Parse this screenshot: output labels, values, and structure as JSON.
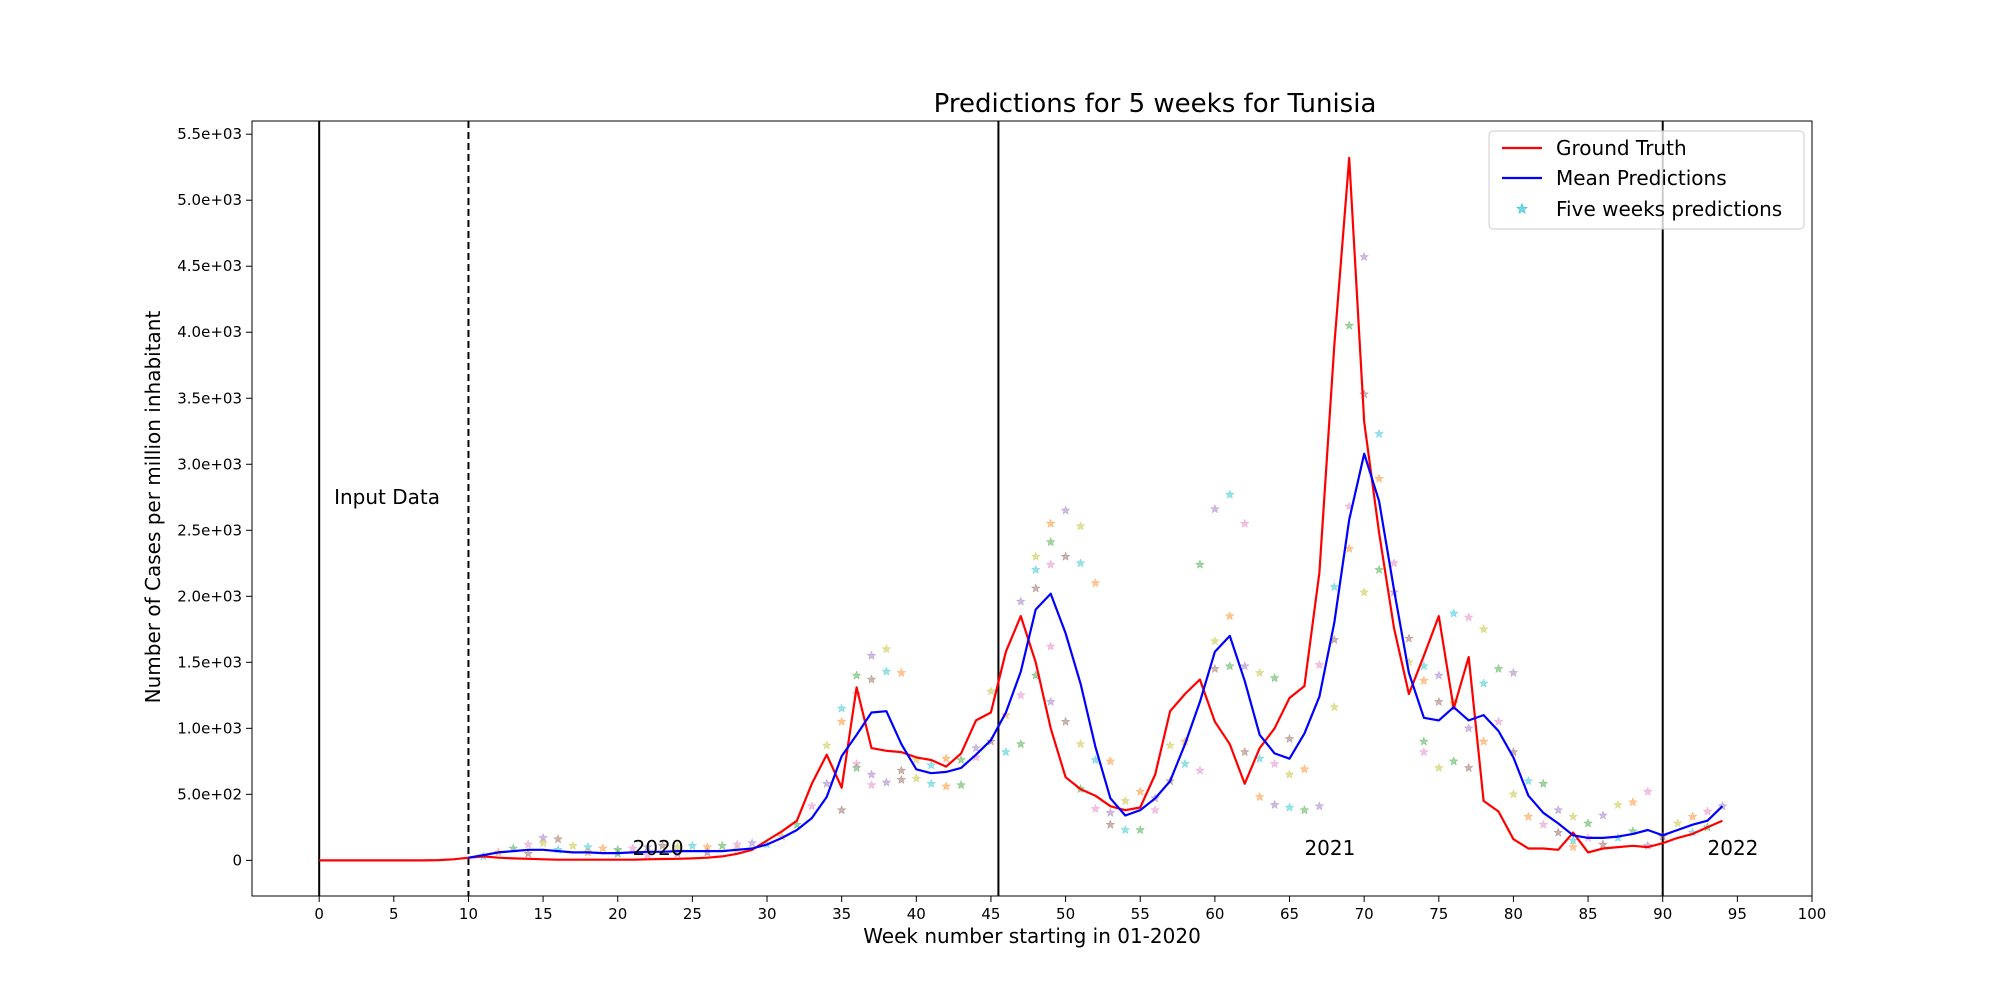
{
  "chart_data": {
    "type": "line",
    "title": "Predictions for 5 weeks for Tunisia",
    "xlabel": "Week number starting in 01-2020",
    "ylabel": "Number of Cases per million inhabitant",
    "xlim": [
      -4.5,
      100
    ],
    "ylim": [
      -270,
      5600
    ],
    "xticks": [
      0,
      5,
      10,
      15,
      20,
      25,
      30,
      35,
      40,
      45,
      50,
      55,
      60,
      65,
      70,
      75,
      80,
      85,
      90,
      95,
      100
    ],
    "yticks": [
      {
        "value": 0,
        "label": "0"
      },
      {
        "value": 500,
        "label": "5.0e+02"
      },
      {
        "value": 1000,
        "label": "1.0e+03"
      },
      {
        "value": 1500,
        "label": "1.5e+03"
      },
      {
        "value": 2000,
        "label": "2.0e+03"
      },
      {
        "value": 2500,
        "label": "2.5e+03"
      },
      {
        "value": 3000,
        "label": "3.0e+03"
      },
      {
        "value": 3500,
        "label": "3.5e+03"
      },
      {
        "value": 4000,
        "label": "4.0e+03"
      },
      {
        "value": 4500,
        "label": "4.5e+03"
      },
      {
        "value": 5000,
        "label": "5.0e+03"
      },
      {
        "value": 5500,
        "label": "5.5e+03"
      }
    ],
    "grid": false,
    "legend_position": "top-right",
    "vertical_lines": [
      {
        "x": 0,
        "style": "solid"
      },
      {
        "x": 10,
        "style": "dashed"
      },
      {
        "x": 45.5,
        "style": "solid"
      },
      {
        "x": 90,
        "style": "solid"
      }
    ],
    "annotations": [
      {
        "text": "Input Data",
        "x": 1,
        "y": 2700
      },
      {
        "text": "2020",
        "x": 21,
        "y": 40
      },
      {
        "text": "2021",
        "x": 66,
        "y": 40
      },
      {
        "text": "2022",
        "x": 93,
        "y": 40
      }
    ],
    "series": [
      {
        "name": "Ground Truth",
        "color": "#ff0000",
        "kind": "line",
        "x": [
          0,
          1,
          2,
          3,
          4,
          5,
          6,
          7,
          8,
          9,
          10,
          11,
          12,
          13,
          14,
          15,
          16,
          17,
          18,
          19,
          20,
          21,
          22,
          23,
          24,
          25,
          26,
          27,
          28,
          29,
          30,
          31,
          32,
          33,
          34,
          35,
          36,
          37,
          38,
          39,
          40,
          41,
          42,
          43,
          44,
          45,
          46,
          47,
          48,
          49,
          50,
          51,
          52,
          53,
          54,
          55,
          56,
          57,
          58,
          59,
          60,
          61,
          62,
          63,
          64,
          65,
          66,
          67,
          68,
          69,
          70,
          71,
          72,
          73,
          74,
          75,
          76,
          77,
          78,
          79,
          80,
          81,
          82,
          83,
          84,
          85,
          86,
          87,
          88,
          89,
          90,
          91,
          92,
          93,
          94
        ],
        "values": [
          0,
          0,
          0,
          0,
          0,
          0,
          0,
          0,
          2,
          8,
          20,
          30,
          20,
          15,
          12,
          8,
          5,
          5,
          5,
          5,
          5,
          5,
          8,
          10,
          12,
          15,
          20,
          30,
          50,
          80,
          150,
          220,
          300,
          580,
          800,
          550,
          1310,
          850,
          830,
          820,
          780,
          760,
          710,
          810,
          1060,
          1120,
          1580,
          1850,
          1500,
          1000,
          630,
          540,
          490,
          410,
          380,
          400,
          650,
          1130,
          1260,
          1370,
          1050,
          880,
          580,
          850,
          1000,
          1230,
          1320,
          2180,
          3900,
          5320,
          3320,
          2480,
          1760,
          1260,
          1550,
          1850,
          1150,
          1540,
          450,
          370,
          160,
          90,
          90,
          80,
          210,
          60,
          90,
          100,
          110,
          100,
          130,
          170,
          200,
          250,
          300
        ]
      },
      {
        "name": "Mean Predictions",
        "color": "#0000ff",
        "kind": "line",
        "x": [
          10,
          11,
          12,
          13,
          14,
          15,
          16,
          17,
          18,
          19,
          20,
          21,
          22,
          23,
          24,
          25,
          26,
          27,
          28,
          29,
          30,
          31,
          32,
          33,
          34,
          35,
          36,
          37,
          38,
          39,
          40,
          41,
          42,
          43,
          44,
          45,
          46,
          47,
          48,
          49,
          50,
          51,
          52,
          53,
          54,
          55,
          56,
          57,
          58,
          59,
          60,
          61,
          62,
          63,
          64,
          65,
          66,
          67,
          68,
          69,
          70,
          71,
          72,
          73,
          74,
          75,
          76,
          77,
          78,
          79,
          80,
          81,
          82,
          83,
          84,
          85,
          86,
          87,
          88,
          89,
          90,
          91,
          92,
          93,
          94
        ],
        "values": [
          20,
          40,
          60,
          70,
          80,
          80,
          70,
          60,
          60,
          55,
          55,
          60,
          65,
          65,
          70,
          70,
          70,
          70,
          80,
          90,
          120,
          170,
          230,
          320,
          480,
          790,
          950,
          1120,
          1130,
          880,
          690,
          660,
          670,
          700,
          800,
          910,
          1120,
          1430,
          1900,
          2020,
          1720,
          1340,
          860,
          470,
          340,
          380,
          470,
          600,
          880,
          1200,
          1580,
          1700,
          1360,
          950,
          810,
          770,
          960,
          1240,
          1800,
          2580,
          3080,
          2720,
          2050,
          1420,
          1080,
          1060,
          1160,
          1060,
          1100,
          980,
          780,
          490,
          360,
          280,
          190,
          170,
          170,
          180,
          200,
          230,
          190,
          230,
          270,
          300,
          410
        ]
      },
      {
        "name": "Five weeks predictions",
        "kind": "scatter",
        "marker": "star",
        "colors": [
          "#17becf",
          "#ff7f0e",
          "#2ca02c",
          "#e377c2",
          "#9467bd",
          "#8c564b",
          "#bcbd22"
        ],
        "points": [
          [
            11,
            30
          ],
          [
            12,
            60
          ],
          [
            13,
            90
          ],
          [
            14,
            120
          ],
          [
            15,
            170
          ],
          [
            16,
            160
          ],
          [
            17,
            110
          ],
          [
            18,
            100
          ],
          [
            19,
            90
          ],
          [
            20,
            80
          ],
          [
            21,
            90
          ],
          [
            22,
            100
          ],
          [
            23,
            110
          ],
          [
            24,
            100
          ],
          [
            25,
            110
          ],
          [
            26,
            100
          ],
          [
            27,
            110
          ],
          [
            28,
            120
          ],
          [
            29,
            130
          ],
          [
            14,
            50
          ],
          [
            15,
            130
          ],
          [
            16,
            80
          ],
          [
            18,
            60
          ],
          [
            20,
            50
          ],
          [
            22,
            40
          ],
          [
            24,
            50
          ],
          [
            26,
            60
          ],
          [
            28,
            80
          ],
          [
            30,
            120
          ],
          [
            31,
            180
          ],
          [
            32,
            270
          ],
          [
            33,
            410
          ],
          [
            34,
            580
          ],
          [
            35,
            380
          ],
          [
            34,
            870
          ],
          [
            35,
            1150
          ],
          [
            35,
            1050
          ],
          [
            36,
            1400
          ],
          [
            36,
            1260
          ],
          [
            37,
            1550
          ],
          [
            37,
            1370
          ],
          [
            38,
            1600
          ],
          [
            38,
            1430
          ],
          [
            39,
            1420
          ],
          [
            36,
            700
          ],
          [
            37,
            570
          ],
          [
            38,
            590
          ],
          [
            39,
            610
          ],
          [
            40,
            620
          ],
          [
            41,
            580
          ],
          [
            42,
            560
          ],
          [
            43,
            570
          ],
          [
            36,
            730
          ],
          [
            37,
            650
          ],
          [
            39,
            680
          ],
          [
            40,
            760
          ],
          [
            41,
            720
          ],
          [
            42,
            770
          ],
          [
            43,
            760
          ],
          [
            44,
            780
          ],
          [
            44,
            850
          ],
          [
            45,
            900
          ],
          [
            45,
            1280
          ],
          [
            46,
            820
          ],
          [
            46,
            1100
          ],
          [
            47,
            880
          ],
          [
            47,
            1250
          ],
          [
            47,
            1960
          ],
          [
            48,
            2060
          ],
          [
            48,
            2300
          ],
          [
            48,
            2200
          ],
          [
            49,
            2550
          ],
          [
            49,
            2410
          ],
          [
            49,
            2240
          ],
          [
            50,
            2650
          ],
          [
            50,
            2300
          ],
          [
            51,
            2530
          ],
          [
            51,
            2250
          ],
          [
            52,
            2100
          ],
          [
            48,
            1400
          ],
          [
            49,
            1620
          ],
          [
            49,
            1200
          ],
          [
            50,
            1050
          ],
          [
            51,
            880
          ],
          [
            52,
            760
          ],
          [
            53,
            750
          ],
          [
            51,
            540
          ],
          [
            52,
            390
          ],
          [
            53,
            360
          ],
          [
            53,
            270
          ],
          [
            54,
            450
          ],
          [
            54,
            230
          ],
          [
            55,
            520
          ],
          [
            55,
            230
          ],
          [
            56,
            380
          ],
          [
            56,
            470
          ],
          [
            57,
            600
          ],
          [
            57,
            870
          ],
          [
            58,
            730
          ],
          [
            58,
            900
          ],
          [
            59,
            2240
          ],
          [
            59,
            680
          ],
          [
            60,
            2660
          ],
          [
            60,
            1450
          ],
          [
            60,
            1660
          ],
          [
            61,
            2770
          ],
          [
            61,
            1850
          ],
          [
            61,
            1470
          ],
          [
            62,
            2550
          ],
          [
            62,
            1470
          ],
          [
            62,
            820
          ],
          [
            63,
            1420
          ],
          [
            63,
            770
          ],
          [
            63,
            480
          ],
          [
            64,
            1380
          ],
          [
            64,
            730
          ],
          [
            64,
            420
          ],
          [
            65,
            920
          ],
          [
            65,
            650
          ],
          [
            65,
            400
          ],
          [
            66,
            690
          ],
          [
            66,
            380
          ],
          [
            67,
            1480
          ],
          [
            67,
            410
          ],
          [
            68,
            1670
          ],
          [
            68,
            1160
          ],
          [
            68,
            2070
          ],
          [
            69,
            2360
          ],
          [
            69,
            4050
          ],
          [
            69,
            2680
          ],
          [
            70,
            4570
          ],
          [
            70,
            3530
          ],
          [
            70,
            2030
          ],
          [
            71,
            3230
          ],
          [
            71,
            2890
          ],
          [
            71,
            2200
          ],
          [
            72,
            2250
          ],
          [
            72,
            2030
          ],
          [
            73,
            1680
          ],
          [
            73,
            1500
          ],
          [
            74,
            1470
          ],
          [
            74,
            1360
          ],
          [
            74,
            900
          ],
          [
            74,
            820
          ],
          [
            75,
            1400
          ],
          [
            75,
            1200
          ],
          [
            75,
            700
          ],
          [
            76,
            1870
          ],
          [
            76,
            1190
          ],
          [
            76,
            750
          ],
          [
            77,
            1840
          ],
          [
            77,
            1000
          ],
          [
            77,
            700
          ],
          [
            78,
            1750
          ],
          [
            78,
            1340
          ],
          [
            78,
            900
          ],
          [
            79,
            1450
          ],
          [
            79,
            1050
          ],
          [
            80,
            1420
          ],
          [
            80,
            820
          ],
          [
            80,
            500
          ],
          [
            81,
            600
          ],
          [
            81,
            330
          ],
          [
            82,
            580
          ],
          [
            82,
            270
          ],
          [
            83,
            380
          ],
          [
            83,
            210
          ],
          [
            84,
            330
          ],
          [
            84,
            150
          ],
          [
            84,
            100
          ],
          [
            85,
            280
          ],
          [
            85,
            170
          ],
          [
            86,
            340
          ],
          [
            86,
            120
          ],
          [
            87,
            420
          ],
          [
            87,
            170
          ],
          [
            88,
            440
          ],
          [
            88,
            220
          ],
          [
            89,
            520
          ],
          [
            89,
            110
          ],
          [
            90,
            180
          ],
          [
            91,
            280
          ],
          [
            92,
            210
          ],
          [
            92,
            330
          ],
          [
            93,
            250
          ],
          [
            93,
            370
          ],
          [
            94,
            410
          ]
        ]
      }
    ]
  }
}
